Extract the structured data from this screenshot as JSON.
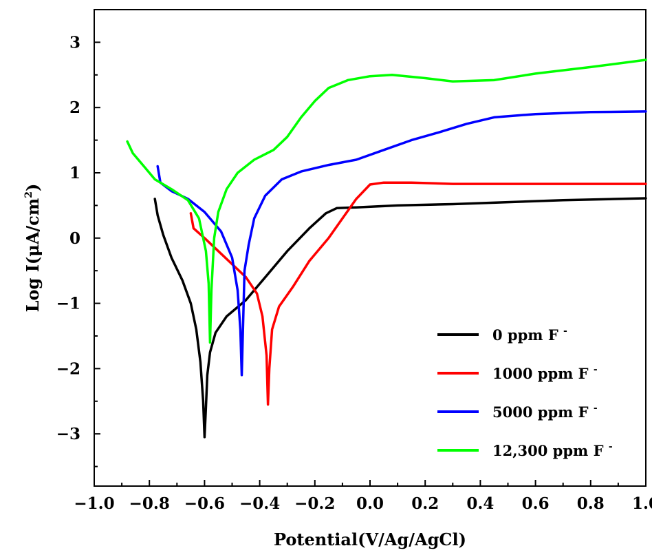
{
  "chart_data": {
    "type": "line",
    "title": "",
    "xlabel": "Potential(V/Ag/AgCl)",
    "ylabel_main": "Log I(μA/cm",
    "ylabel_sup": "2",
    "ylabel_close": ")",
    "xlim": [
      -1.0,
      1.0
    ],
    "ylim": [
      -3.8,
      3.5
    ],
    "x_ticks": [
      "-1.0",
      "-0.8",
      "-0.6",
      "-0.4",
      "-0.2",
      "0.0",
      "0.2",
      "0.4",
      "0.6",
      "0.8",
      "1.0"
    ],
    "x_tick_values": [
      -1.0,
      -0.8,
      -0.6,
      -0.4,
      -0.2,
      0.0,
      0.2,
      0.4,
      0.6,
      0.8,
      1.0
    ],
    "y_ticks": [
      "3",
      "2",
      "1",
      "0",
      "-1",
      "-2",
      "-3"
    ],
    "y_tick_values": [
      3,
      2,
      1,
      0,
      -1,
      -2,
      -3
    ],
    "legend_position": "bottom-right",
    "series": [
      {
        "name": "0 ppm F",
        "sup": "-",
        "color": "#000000",
        "points": [
          [
            -0.78,
            0.6
          ],
          [
            -0.77,
            0.35
          ],
          [
            -0.75,
            0.05
          ],
          [
            -0.72,
            -0.3
          ],
          [
            -0.68,
            -0.65
          ],
          [
            -0.65,
            -1.0
          ],
          [
            -0.63,
            -1.4
          ],
          [
            -0.615,
            -1.9
          ],
          [
            -0.605,
            -2.5
          ],
          [
            -0.6,
            -3.05
          ],
          [
            -0.595,
            -2.6
          ],
          [
            -0.59,
            -2.1
          ],
          [
            -0.58,
            -1.75
          ],
          [
            -0.56,
            -1.45
          ],
          [
            -0.52,
            -1.2
          ],
          [
            -0.45,
            -0.95
          ],
          [
            -0.38,
            -0.6
          ],
          [
            -0.3,
            -0.2
          ],
          [
            -0.22,
            0.15
          ],
          [
            -0.16,
            0.38
          ],
          [
            -0.12,
            0.46
          ],
          [
            -0.05,
            0.47
          ],
          [
            0.1,
            0.5
          ],
          [
            0.3,
            0.52
          ],
          [
            0.5,
            0.55
          ],
          [
            0.7,
            0.58
          ],
          [
            0.9,
            0.6
          ],
          [
            1.0,
            0.61
          ]
        ]
      },
      {
        "name": "1000 ppm F",
        "sup": "-",
        "color": "#ff0000",
        "points": [
          [
            -0.65,
            0.38
          ],
          [
            -0.64,
            0.15
          ],
          [
            -0.6,
            0.0
          ],
          [
            -0.55,
            -0.2
          ],
          [
            -0.5,
            -0.4
          ],
          [
            -0.45,
            -0.6
          ],
          [
            -0.41,
            -0.85
          ],
          [
            -0.39,
            -1.2
          ],
          [
            -0.375,
            -1.8
          ],
          [
            -0.37,
            -2.55
          ],
          [
            -0.365,
            -2.0
          ],
          [
            -0.355,
            -1.4
          ],
          [
            -0.33,
            -1.05
          ],
          [
            -0.28,
            -0.75
          ],
          [
            -0.22,
            -0.35
          ],
          [
            -0.15,
            0.0
          ],
          [
            -0.1,
            0.3
          ],
          [
            -0.05,
            0.6
          ],
          [
            0.0,
            0.82
          ],
          [
            0.05,
            0.85
          ],
          [
            0.15,
            0.85
          ],
          [
            0.3,
            0.83
          ],
          [
            0.6,
            0.83
          ],
          [
            1.0,
            0.83
          ]
        ]
      },
      {
        "name": "5000 ppm F",
        "sup": "-",
        "color": "#0000ff",
        "points": [
          [
            -0.77,
            1.1
          ],
          [
            -0.76,
            0.85
          ],
          [
            -0.72,
            0.72
          ],
          [
            -0.66,
            0.6
          ],
          [
            -0.6,
            0.4
          ],
          [
            -0.54,
            0.1
          ],
          [
            -0.5,
            -0.3
          ],
          [
            -0.48,
            -0.8
          ],
          [
            -0.47,
            -1.4
          ],
          [
            -0.465,
            -2.1
          ],
          [
            -0.46,
            -1.3
          ],
          [
            -0.455,
            -0.5
          ],
          [
            -0.44,
            -0.1
          ],
          [
            -0.42,
            0.3
          ],
          [
            -0.38,
            0.65
          ],
          [
            -0.32,
            0.9
          ],
          [
            -0.25,
            1.02
          ],
          [
            -0.15,
            1.12
          ],
          [
            -0.05,
            1.2
          ],
          [
            0.05,
            1.35
          ],
          [
            0.15,
            1.5
          ],
          [
            0.25,
            1.62
          ],
          [
            0.35,
            1.75
          ],
          [
            0.45,
            1.85
          ],
          [
            0.6,
            1.9
          ],
          [
            0.8,
            1.93
          ],
          [
            1.0,
            1.94
          ]
        ]
      },
      {
        "name": "12,300 ppm F",
        "sup": "-",
        "color": "#00ff00",
        "points": [
          [
            -0.88,
            1.48
          ],
          [
            -0.86,
            1.3
          ],
          [
            -0.82,
            1.1
          ],
          [
            -0.78,
            0.9
          ],
          [
            -0.72,
            0.75
          ],
          [
            -0.66,
            0.58
          ],
          [
            -0.62,
            0.3
          ],
          [
            -0.595,
            -0.2
          ],
          [
            -0.585,
            -0.7
          ],
          [
            -0.58,
            -1.6
          ],
          [
            -0.575,
            -0.8
          ],
          [
            -0.565,
            0.0
          ],
          [
            -0.55,
            0.4
          ],
          [
            -0.52,
            0.75
          ],
          [
            -0.48,
            1.0
          ],
          [
            -0.42,
            1.2
          ],
          [
            -0.35,
            1.35
          ],
          [
            -0.3,
            1.55
          ],
          [
            -0.25,
            1.85
          ],
          [
            -0.2,
            2.1
          ],
          [
            -0.15,
            2.3
          ],
          [
            -0.08,
            2.42
          ],
          [
            0.0,
            2.48
          ],
          [
            0.08,
            2.5
          ],
          [
            0.2,
            2.45
          ],
          [
            0.3,
            2.4
          ],
          [
            0.45,
            2.42
          ],
          [
            0.6,
            2.52
          ],
          [
            0.8,
            2.62
          ],
          [
            1.0,
            2.73
          ]
        ]
      }
    ]
  }
}
